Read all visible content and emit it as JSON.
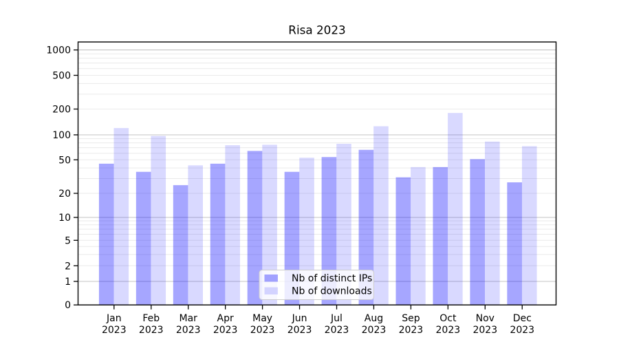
{
  "chart_data": {
    "type": "bar",
    "title": "Risa 2023",
    "categories": [
      "Jan 2023",
      "Feb 2023",
      "Mar 2023",
      "Apr 2023",
      "May 2023",
      "Jun 2023",
      "Jul 2023",
      "Aug 2023",
      "Sep 2023",
      "Oct 2023",
      "Nov 2023",
      "Dec 2023"
    ],
    "series": [
      {
        "name": "Nb of distinct IPs",
        "color": "#0000ff59",
        "values": [
          45,
          36,
          25,
          45,
          64,
          36,
          54,
          66,
          31,
          41,
          51,
          27
        ]
      },
      {
        "name": "Nb of downloads",
        "color": "#0000ff26",
        "values": [
          120,
          97,
          43,
          75,
          76,
          53,
          78,
          126,
          41,
          180,
          83,
          73
        ]
      }
    ],
    "xlabel": "",
    "ylabel": "",
    "yscale": "symlog",
    "yticks": [
      0,
      1,
      2,
      5,
      10,
      20,
      50,
      100,
      200,
      500,
      1000
    ],
    "ylim": [
      0,
      1250
    ],
    "grid": true,
    "legend": {
      "position": "lower-center-inside",
      "entries": [
        "Nb of distinct IPs",
        "Nb of downloads"
      ]
    },
    "colors": {
      "bar_distinct_ips_rendered": "#a7a7f7",
      "bar_downloads_rendered": "#d9d9f9",
      "major_gridline": "#c3c3c3",
      "minor_gridline": "#eaeaea",
      "axis": "#000000",
      "legend_border": "#cccccc"
    }
  }
}
